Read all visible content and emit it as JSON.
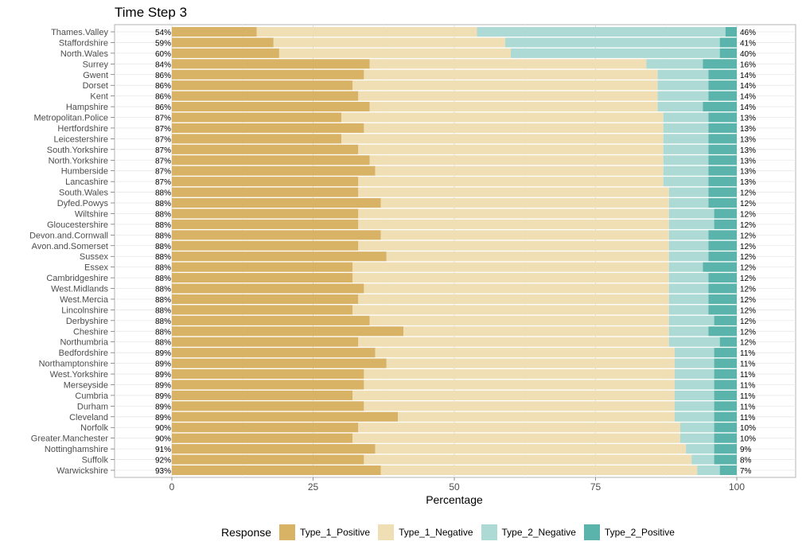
{
  "chart_data": {
    "type": "bar",
    "orientation": "horizontal",
    "stacked": true,
    "title": "Time Step 3",
    "xlabel": "Percentage",
    "ylabel": "",
    "xlim": [
      0,
      100
    ],
    "x_ticks": [
      0,
      25,
      50,
      75,
      100
    ],
    "grid": true,
    "legend_position": "bottom",
    "legend_title": "Response",
    "categories": [
      "Thames.Valley",
      "Staffordshire",
      "North.Wales",
      "Surrey",
      "Gwent",
      "Dorset",
      "Kent",
      "Hampshire",
      "Metropolitan.Police",
      "Hertfordshire",
      "Leicestershire",
      "South.Yorkshire",
      "North.Yorkshire",
      "Humberside",
      "Lancashire",
      "South.Wales",
      "Dyfed.Powys",
      "Wiltshire",
      "Gloucestershire",
      "Devon.and.Cornwall",
      "Avon.and.Somerset",
      "Sussex",
      "Essex",
      "Cambridgeshire",
      "West.Midlands",
      "West.Mercia",
      "Lincolnshire",
      "Derbyshire",
      "Cheshire",
      "Northumbria",
      "Bedfordshire",
      "Northamptonshire",
      "West.Yorkshire",
      "Merseyside",
      "Cumbria",
      "Durham",
      "Cleveland",
      "Norfolk",
      "Greater.Manchester",
      "Nottinghamshire",
      "Suffolk",
      "Warwickshire"
    ],
    "series": [
      {
        "name": "Type_1_Positive",
        "color": "#D8B365",
        "values": [
          15,
          18,
          19,
          35,
          34,
          32,
          33,
          35,
          30,
          34,
          30,
          33,
          35,
          36,
          33,
          33,
          37,
          33,
          33,
          37,
          33,
          38,
          32,
          32,
          34,
          33,
          32,
          35,
          41,
          33,
          36,
          38,
          34,
          34,
          32,
          34,
          40,
          33,
          32,
          36,
          34,
          37
        ]
      },
      {
        "name": "Type_1_Negative",
        "color": "#F0DEB5",
        "values": [
          39,
          41,
          41,
          49,
          52,
          54,
          53,
          51,
          57,
          53,
          57,
          54,
          52,
          51,
          54,
          55,
          51,
          55,
          55,
          51,
          55,
          50,
          56,
          56,
          54,
          55,
          56,
          53,
          47,
          55,
          53,
          51,
          55,
          55,
          57,
          55,
          49,
          57,
          58,
          55,
          58,
          56
        ]
      },
      {
        "name": "Type_2_Negative",
        "color": "#ADDAD4",
        "values": [
          44,
          38,
          37,
          10,
          9,
          9,
          9,
          8,
          8,
          8,
          8,
          8,
          8,
          8,
          8,
          7,
          7,
          8,
          8,
          7,
          7,
          7,
          6,
          7,
          7,
          7,
          7,
          8,
          7,
          9,
          7,
          7,
          7,
          7,
          7,
          7,
          7,
          6,
          6,
          5,
          4,
          4
        ]
      },
      {
        "name": "Type_2_Positive",
        "color": "#5AB4AC",
        "values": [
          2,
          3,
          3,
          6,
          5,
          5,
          5,
          6,
          5,
          5,
          5,
          5,
          5,
          5,
          5,
          5,
          5,
          4,
          4,
          5,
          5,
          5,
          6,
          5,
          5,
          5,
          5,
          4,
          5,
          3,
          4,
          4,
          4,
          4,
          4,
          4,
          4,
          4,
          4,
          4,
          4,
          3
        ]
      }
    ],
    "left_labels": [
      "54%",
      "59%",
      "60%",
      "84%",
      "86%",
      "86%",
      "86%",
      "86%",
      "87%",
      "87%",
      "87%",
      "87%",
      "87%",
      "87%",
      "87%",
      "88%",
      "88%",
      "88%",
      "88%",
      "88%",
      "88%",
      "88%",
      "88%",
      "88%",
      "88%",
      "88%",
      "88%",
      "88%",
      "88%",
      "88%",
      "89%",
      "89%",
      "89%",
      "89%",
      "89%",
      "89%",
      "89%",
      "90%",
      "90%",
      "91%",
      "92%",
      "93%"
    ],
    "right_labels": [
      "46%",
      "41%",
      "40%",
      "16%",
      "14%",
      "14%",
      "14%",
      "14%",
      "13%",
      "13%",
      "13%",
      "13%",
      "13%",
      "13%",
      "13%",
      "12%",
      "12%",
      "12%",
      "12%",
      "12%",
      "12%",
      "12%",
      "12%",
      "12%",
      "12%",
      "12%",
      "12%",
      "12%",
      "12%",
      "12%",
      "11%",
      "11%",
      "11%",
      "11%",
      "11%",
      "11%",
      "11%",
      "10%",
      "10%",
      "9%",
      "8%",
      "7%"
    ]
  }
}
